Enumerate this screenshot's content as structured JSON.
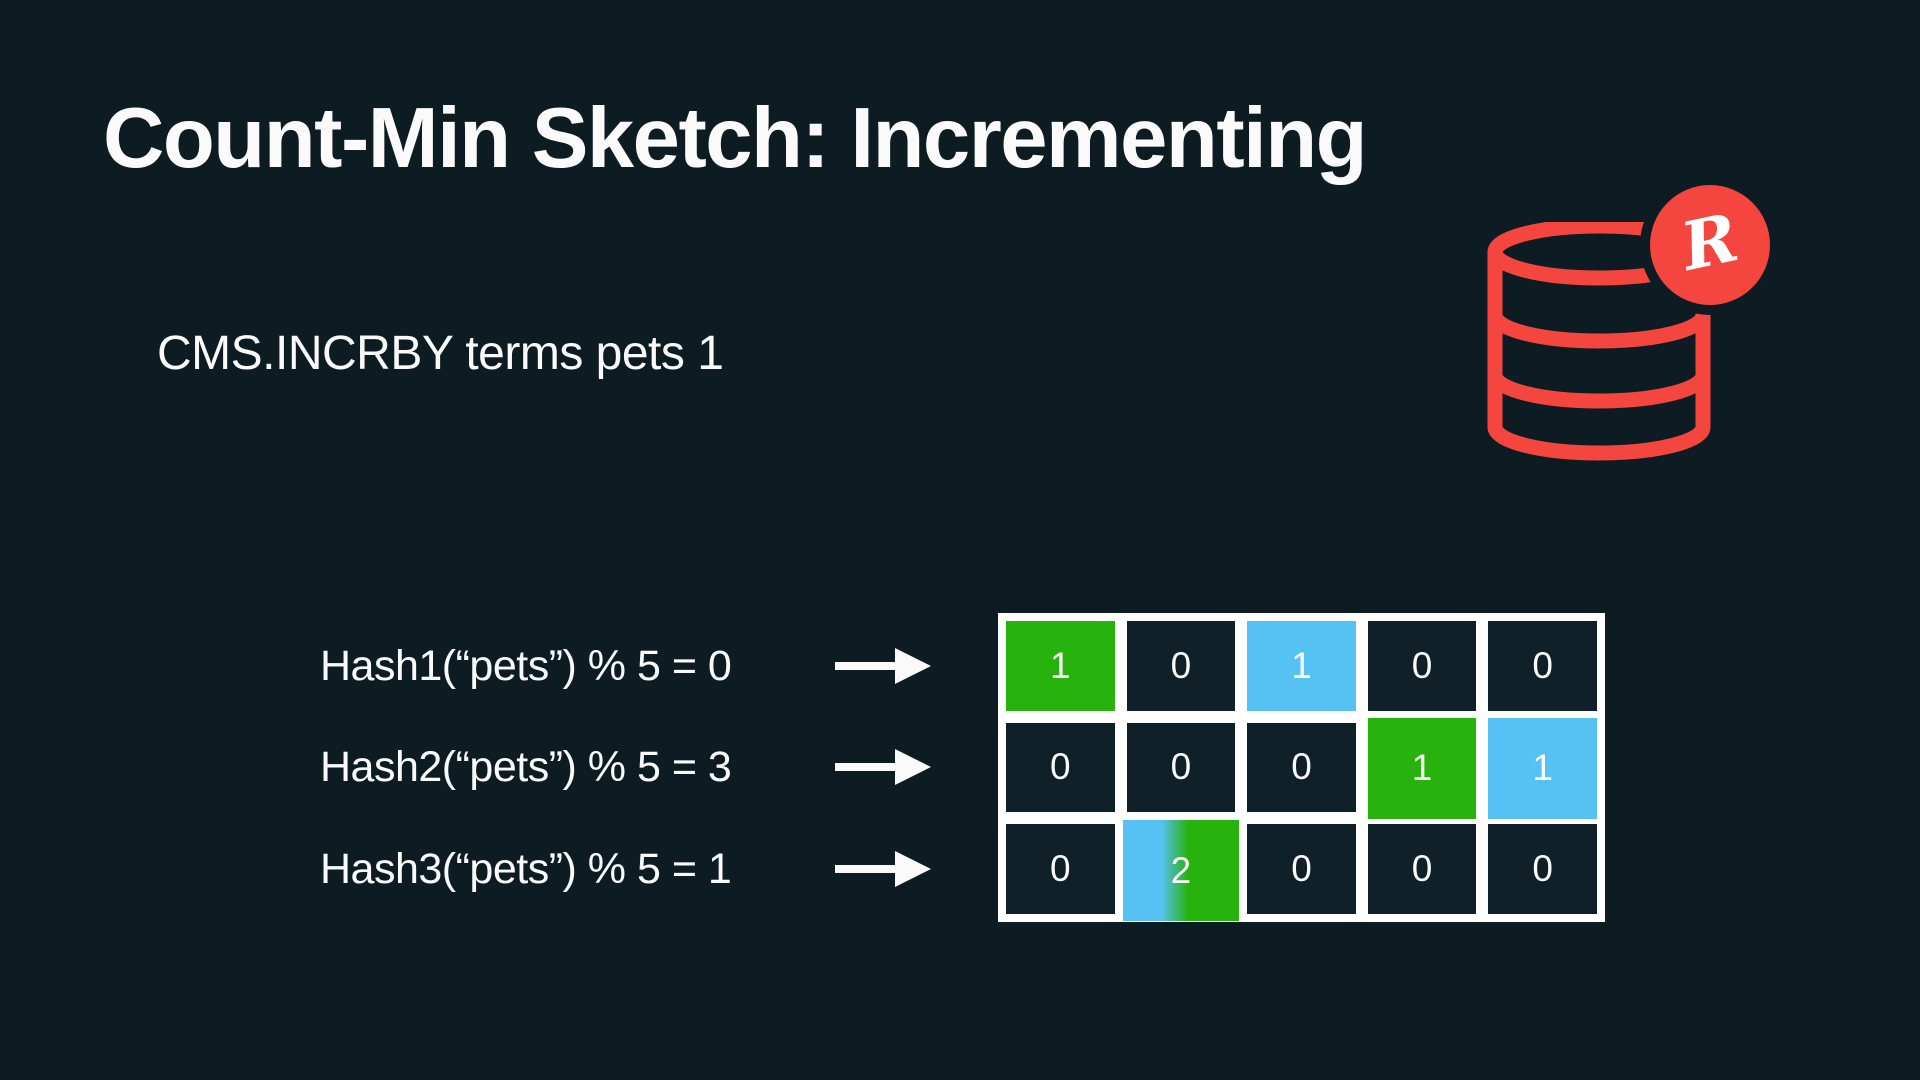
{
  "slide": {
    "title": "Count-Min Sketch: Incrementing",
    "command": "CMS.INCRBY terms pets 1"
  },
  "hash_rows": [
    {
      "label": "Hash1(“pets”) % 5 = 0",
      "bucket": 0
    },
    {
      "label": "Hash2(“pets”) % 5 = 3",
      "bucket": 3
    },
    {
      "label": "Hash3(“pets”) % 5 = 1",
      "bucket": 1
    }
  ],
  "sketch_grid": {
    "columns": 5,
    "rows": [
      [
        {
          "value": "1",
          "highlight": "green"
        },
        {
          "value": "0",
          "highlight": "none"
        },
        {
          "value": "1",
          "highlight": "blue"
        },
        {
          "value": "0",
          "highlight": "none"
        },
        {
          "value": "0",
          "highlight": "none"
        }
      ],
      [
        {
          "value": "0",
          "highlight": "none"
        },
        {
          "value": "0",
          "highlight": "none"
        },
        {
          "value": "0",
          "highlight": "none"
        },
        {
          "value": "1",
          "highlight": "green"
        },
        {
          "value": "1",
          "highlight": "blue"
        }
      ],
      [
        {
          "value": "0",
          "highlight": "none"
        },
        {
          "value": "2",
          "highlight": "gradient"
        },
        {
          "value": "0",
          "highlight": "none"
        },
        {
          "value": "0",
          "highlight": "none"
        },
        {
          "value": "0",
          "highlight": "none"
        }
      ]
    ]
  },
  "logo": {
    "badge_letter": "R"
  },
  "colors": {
    "background": "#0d1b23",
    "cell": "#0f2029",
    "green": "#28b20e",
    "blue": "#56c2f4",
    "red": "#f4463e",
    "text": "#fafafa",
    "grid_border": "#ffffff"
  }
}
